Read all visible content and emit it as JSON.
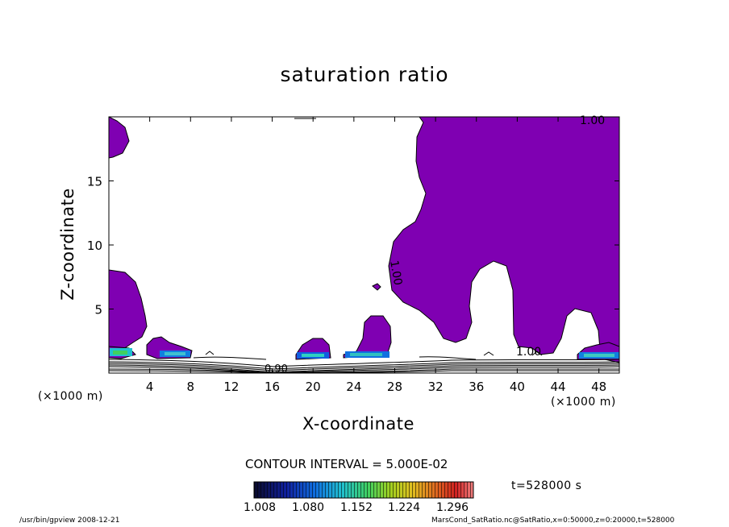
{
  "chart_data": {
    "type": "contour",
    "title": "saturation ratio",
    "xlabel": "X-coordinate",
    "ylabel": "Z-coordinate",
    "x_unit": "(×1000 m)",
    "xlim": [
      0,
      50
    ],
    "ylim": [
      0,
      20
    ],
    "x_ticks": [
      4,
      8,
      12,
      16,
      20,
      24,
      28,
      32,
      36,
      40,
      44,
      48
    ],
    "y_ticks": [
      5,
      10,
      15
    ],
    "contour_interval": "CONTOUR INTERVAL = 5.000E-02",
    "contour_labels": [
      "1.00",
      "1.00",
      "1.00",
      "0.90"
    ],
    "time": "t=528000 s",
    "colorbar": {
      "ticks": [
        "1.008",
        "1.080",
        "1.152",
        "1.224",
        "1.296"
      ],
      "colors": [
        "#0a0a2a",
        "#1020a0",
        "#1060e0",
        "#20c0d0",
        "#40d060",
        "#a0d020",
        "#e0c020",
        "#e07020",
        "#d02020",
        "#f08080"
      ]
    },
    "fill_color": "#7f00b2",
    "footer_left": "/usr/bin/gpview  2008-12-21",
    "footer_right": "MarsCond_SatRatio.nc@SatRatio,x=0:50000,z=0:20000,t=528000"
  }
}
